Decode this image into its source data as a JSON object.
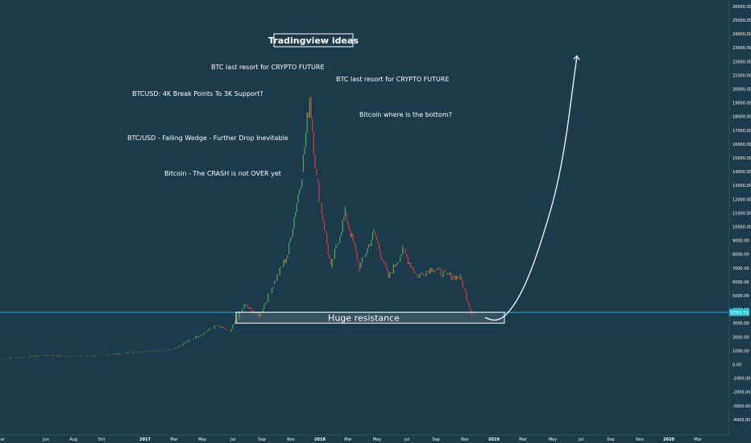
{
  "chart_data": {
    "type": "candlestick",
    "title": "Tradingview ideas",
    "ylim": [
      -4500,
      26500
    ],
    "y_ticks": [
      "26000.00",
      "25000.00",
      "24000.00",
      "23000.00",
      "22000.00",
      "21000.00",
      "20000.00",
      "19000.00",
      "18000.00",
      "17000.00",
      "16000.00",
      "15000.00",
      "14000.00",
      "13000.00",
      "12000.00",
      "11000.00",
      "10000.00",
      "9000.00",
      "8000.00",
      "7000.00",
      "6000.00",
      "5000.00",
      "4000.00",
      "3000.00",
      "2000.00",
      "1000.00",
      "0.00",
      "-1000.00",
      "-2000.00",
      "-3000.00",
      "-4000.00"
    ],
    "x_ticks": [
      "ar",
      "Jun",
      "Aug",
      "Oct",
      "2017",
      "Mar",
      "May",
      "Jul",
      "Sep",
      "Nov",
      "2018",
      "Mar",
      "May",
      "Jul",
      "Sep",
      "Nov",
      "2019",
      "Mar",
      "May",
      "Jul",
      "Sep",
      "Nov",
      "2020",
      "Mar"
    ],
    "current_price_label": "3783.70",
    "current_price": 3783.7,
    "price_path": [
      {
        "x": "2016-03",
        "y": 400
      },
      {
        "x": "2016-06",
        "y": 650
      },
      {
        "x": "2016-08",
        "y": 580
      },
      {
        "x": "2016-10",
        "y": 650
      },
      {
        "x": "2017-01",
        "y": 950
      },
      {
        "x": "2017-03",
        "y": 1100
      },
      {
        "x": "2017-05",
        "y": 2200
      },
      {
        "x": "2017-06",
        "y": 2800
      },
      {
        "x": "2017-07",
        "y": 2400
      },
      {
        "x": "2017-08",
        "y": 4300
      },
      {
        "x": "2017-09",
        "y": 3500
      },
      {
        "x": "2017-10",
        "y": 5800
      },
      {
        "x": "2017-11",
        "y": 8000
      },
      {
        "x": "2017-12",
        "y": 14000
      },
      {
        "x": "2017-12-17",
        "y": 19500
      },
      {
        "x": "2018-01",
        "y": 13500
      },
      {
        "x": "2018-02",
        "y": 7000
      },
      {
        "x": "2018-03",
        "y": 11000
      },
      {
        "x": "2018-04",
        "y": 7000
      },
      {
        "x": "2018-05",
        "y": 9600
      },
      {
        "x": "2018-06",
        "y": 6300
      },
      {
        "x": "2018-07",
        "y": 8300
      },
      {
        "x": "2018-08",
        "y": 6400
      },
      {
        "x": "2018-09",
        "y": 7000
      },
      {
        "x": "2018-10",
        "y": 6500
      },
      {
        "x": "2018-11",
        "y": 6300
      },
      {
        "x": "2018-11-25",
        "y": 3700
      }
    ],
    "projection": [
      {
        "x": "2018-11-25",
        "y": 3400
      },
      {
        "x": "2018-12-15",
        "y": 3200
      },
      {
        "x": "2019-01",
        "y": 3600
      },
      {
        "x": "2019-02",
        "y": 4800
      },
      {
        "x": "2019-03",
        "y": 7000
      },
      {
        "x": "2019-05",
        "y": 13000
      },
      {
        "x": "2019-06-15",
        "y": 22400
      }
    ],
    "resistance_zone": {
      "label": "Huge resistance",
      "y_top": 3800,
      "y_bottom": 3000,
      "x_start": "2017-07",
      "x_end": "2018-12"
    },
    "annotations": [
      "BTC last resort for CRYPTO FUTURE",
      "BTC last resort for CRYPTO FUTURE",
      "BTCUSD: 4K Break Points To 3K Support?",
      "Bitcoin where is the bottom?",
      "BTC/USD - Falling Wedge - Further Drop Inevitable",
      "Bitcoin - The CRASH is not OVER yet"
    ],
    "colors": {
      "background": "#1b3a4b",
      "up": "#4caf50",
      "down": "#e53935",
      "text": "#ffffff",
      "price_line": "#26c6da",
      "axis_text": "#ffffff"
    }
  }
}
